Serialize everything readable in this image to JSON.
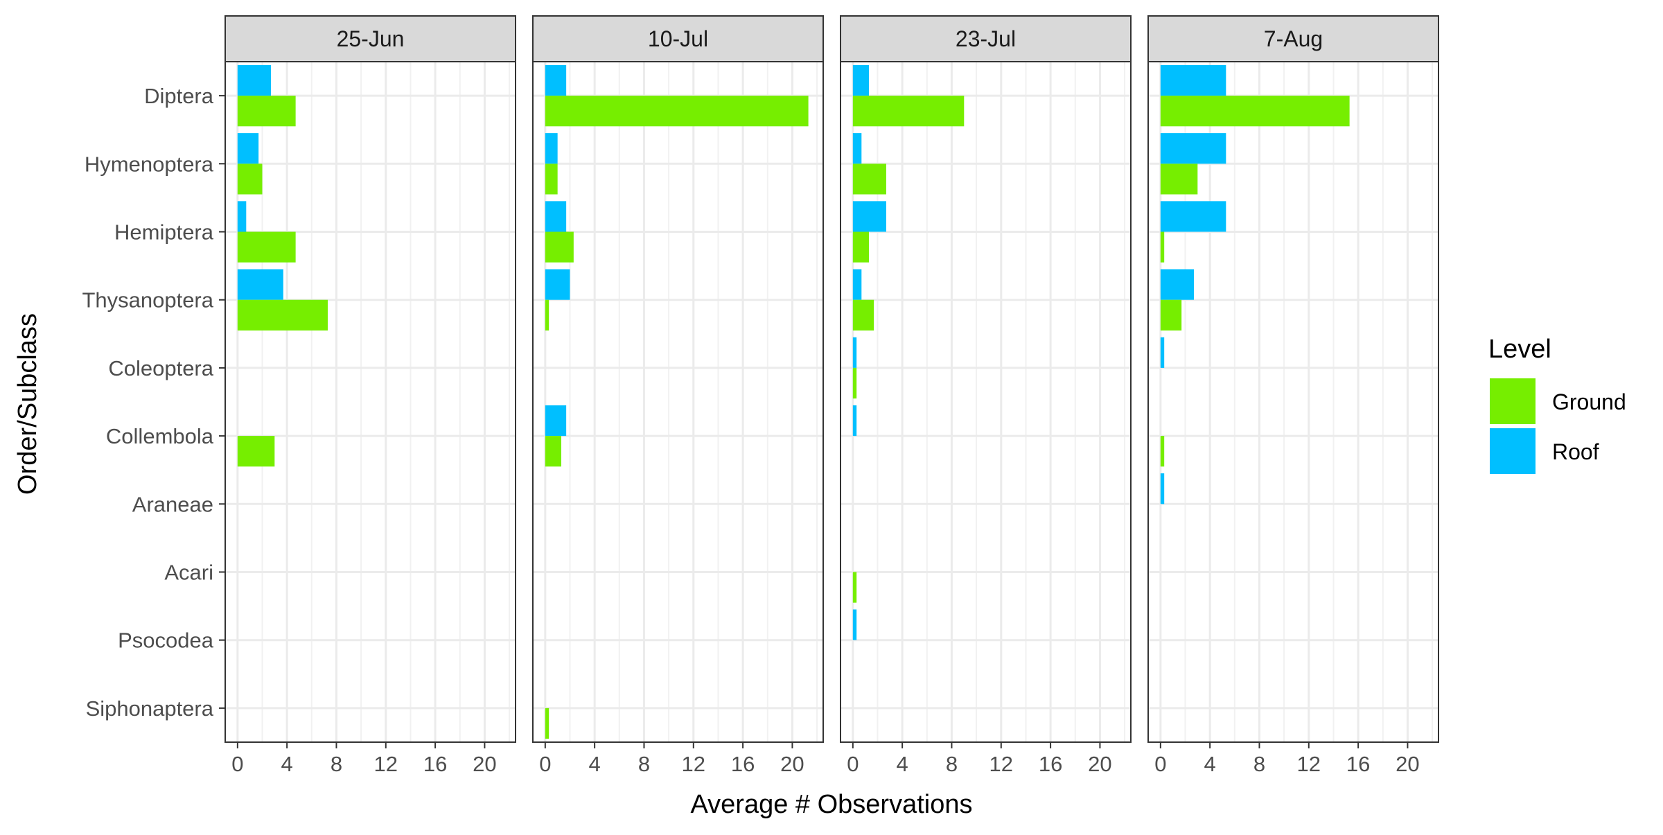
{
  "chart_data": {
    "type": "bar",
    "orientation": "horizontal",
    "facet_by": "date",
    "panels": [
      "25-Jun",
      "10-Jul",
      "23-Jul",
      "7-Aug"
    ],
    "categories": [
      "Diptera",
      "Hymenoptera",
      "Hemiptera",
      "Thysanoptera",
      "Coleoptera",
      "Collembola",
      "Araneae",
      "Acari",
      "Psocodea",
      "Siphonaptera"
    ],
    "xlabel": "Average # Observations",
    "ylabel": "Order/Subclass",
    "xlim": [
      -1,
      22.5
    ],
    "xticks": [
      0,
      4,
      8,
      12,
      16,
      20
    ],
    "grid": true,
    "legend": {
      "title": "Level",
      "position": "right",
      "entries": [
        {
          "name": "Ground",
          "color": "#76EE00"
        },
        {
          "name": "Roof",
          "color": "#00BFFF"
        }
      ]
    },
    "series": [
      {
        "name": "Ground",
        "color": "#76EE00",
        "values": {
          "25-Jun": [
            4.7,
            2.0,
            4.7,
            7.3,
            0,
            3.0,
            0,
            0,
            0,
            0
          ],
          "10-Jul": [
            21.3,
            1.0,
            2.3,
            0.3,
            0,
            1.3,
            0,
            0,
            0,
            0.3
          ],
          "23-Jul": [
            9.0,
            2.7,
            1.3,
            1.7,
            0.3,
            0,
            0,
            0.3,
            0,
            0
          ],
          "7-Aug": [
            15.3,
            3.0,
            0.3,
            1.7,
            0,
            0.3,
            0,
            0,
            0,
            0
          ]
        }
      },
      {
        "name": "Roof",
        "color": "#00BFFF",
        "values": {
          "25-Jun": [
            2.7,
            1.7,
            0.7,
            3.7,
            0,
            0,
            0,
            0,
            0,
            0
          ],
          "10-Jul": [
            1.7,
            1.0,
            1.7,
            2.0,
            0,
            1.7,
            0,
            0,
            0,
            0
          ],
          "23-Jul": [
            1.3,
            0.7,
            2.7,
            0.7,
            0.3,
            0.3,
            0,
            0,
            0.3,
            0
          ],
          "7-Aug": [
            5.3,
            5.3,
            5.3,
            2.7,
            0.3,
            0,
            0.3,
            0,
            0,
            0
          ]
        }
      }
    ]
  }
}
